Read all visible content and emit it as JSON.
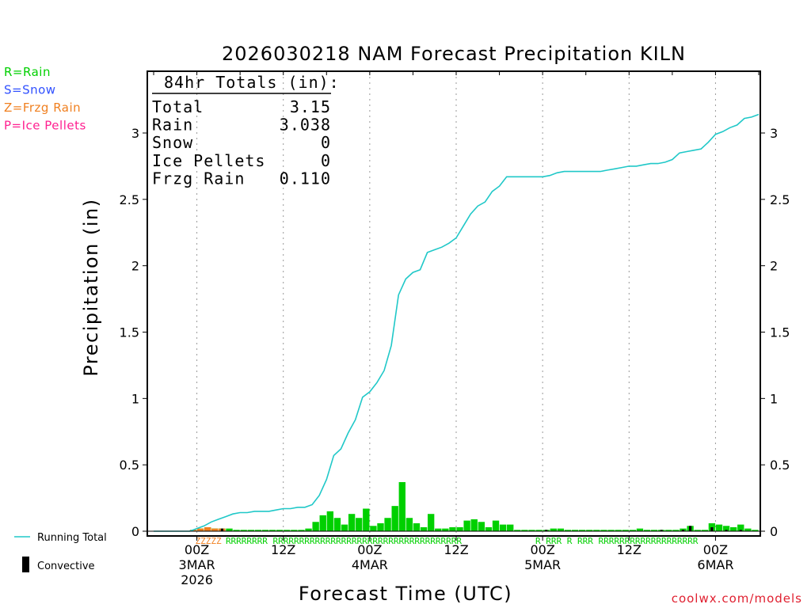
{
  "chart_data": {
    "type": "bar",
    "title": "2026030218 NAM Forecast Precipitation KILN",
    "xlabel": "Forecast Time (UTC)",
    "ylabel": "Precipitation (in)",
    "ylim": [
      0,
      3.45
    ],
    "xlim_hours": [
      0,
      84
    ],
    "y_ticks": [
      0,
      0.5,
      1,
      1.5,
      2,
      2.5,
      3
    ],
    "y_tick_labels": [
      "0",
      "0.5",
      "1",
      "1.5",
      "2",
      "2.5",
      "3"
    ],
    "x_ticks": [
      {
        "hour": 6,
        "lines": [
          "00Z",
          "3MAR",
          "2026"
        ]
      },
      {
        "hour": 18,
        "lines": [
          "12Z"
        ]
      },
      {
        "hour": 30,
        "lines": [
          "00Z",
          "4MAR"
        ]
      },
      {
        "hour": 42,
        "lines": [
          "12Z"
        ]
      },
      {
        "hour": 54,
        "lines": [
          "00Z",
          "5MAR"
        ]
      },
      {
        "hour": 66,
        "lines": [
          "12Z"
        ]
      },
      {
        "hour": 78,
        "lines": [
          "00Z",
          "6MAR"
        ]
      }
    ],
    "legend_types": [
      {
        "label": "R=Rain",
        "color": "#00d000"
      },
      {
        "label": "S=Snow",
        "color": "#3050ff"
      },
      {
        "label": "Z=Frzg Rain",
        "color": "#f08020"
      },
      {
        "label": "P=Ice Pellets",
        "color": "#ff2090"
      }
    ],
    "legend_series": [
      {
        "label": "Running Total",
        "color": "#20c8c8"
      },
      {
        "label": "Convective",
        "color": "#000000"
      }
    ],
    "totals_box": {
      "header": "84hr Totals (in):",
      "rows": [
        {
          "label": "Total",
          "value": "3.15"
        },
        {
          "label": "Rain",
          "value": "3.038"
        },
        {
          "label": "Snow",
          "value": "0"
        },
        {
          "label": "Ice Pellets",
          "value": "0"
        },
        {
          "label": "Frzg Rain",
          "value": "0.110"
        }
      ]
    },
    "series": [
      {
        "name": "Hourly Precipitation",
        "color": "#00d000",
        "hours": [
          1,
          2,
          3,
          4,
          5,
          6,
          7,
          8,
          9,
          10,
          11,
          12,
          13,
          14,
          15,
          16,
          17,
          18,
          19,
          20,
          21,
          22,
          23,
          24,
          25,
          26,
          27,
          28,
          29,
          30,
          31,
          32,
          33,
          34,
          35,
          36,
          37,
          38,
          39,
          40,
          41,
          42,
          43,
          44,
          45,
          46,
          47,
          48,
          49,
          50,
          51,
          52,
          53,
          54,
          55,
          56,
          57,
          58,
          59,
          60,
          61,
          62,
          63,
          64,
          65,
          66,
          67,
          68,
          69,
          70,
          71,
          72,
          73,
          74,
          75,
          76,
          77,
          78,
          79,
          80,
          81,
          82,
          83,
          84
        ],
        "values": [
          0,
          0,
          0,
          0,
          0,
          0.01,
          0.02,
          0.03,
          0.02,
          0.02,
          0.02,
          0.01,
          0.01,
          0.01,
          0.01,
          0.01,
          0.01,
          0.01,
          0.01,
          0.01,
          0.01,
          0.02,
          0.07,
          0.12,
          0.15,
          0.1,
          0.05,
          0.13,
          0.1,
          0.17,
          0.04,
          0.06,
          0.1,
          0.19,
          0.37,
          0.1,
          0.06,
          0.03,
          0.13,
          0.02,
          0.02,
          0.03,
          0.03,
          0.08,
          0.09,
          0.07,
          0.03,
          0.08,
          0.05,
          0.05,
          0.01,
          0.01,
          0.01,
          0.01,
          0.01,
          0.02,
          0.02,
          0.01,
          0.01,
          0.01,
          0.01,
          0.01,
          0.01,
          0.01,
          0.01,
          0.01,
          0.01,
          0.02,
          0.01,
          0.01,
          0.01,
          0.01,
          0.01,
          0.02,
          0.04,
          0.01,
          0.01,
          0.06,
          0.05,
          0.04,
          0.03,
          0.05,
          0.02,
          0.01
        ]
      },
      {
        "name": "Convective",
        "color": "#000000",
        "hours": [
          10,
          55,
          71,
          74,
          75,
          78,
          80,
          82
        ],
        "values": [
          0.02,
          0.01,
          0.01,
          0.01,
          0.04,
          0.03,
          0.01,
          0.01
        ]
      },
      {
        "name": "Freezing Rain",
        "color": "#f08020",
        "hours": [
          6,
          7,
          8,
          9,
          10
        ],
        "values": [
          0.01,
          0.02,
          0.03,
          0.02,
          0.02
        ]
      },
      {
        "name": "Running Total",
        "color": "#20c8c8",
        "hours": [
          0,
          3,
          5,
          6,
          7,
          8,
          9,
          10,
          11,
          12,
          13,
          14,
          15,
          16,
          17,
          18,
          19,
          20,
          21,
          22,
          23,
          24,
          25,
          26,
          27,
          28,
          29,
          30,
          31,
          32,
          33,
          34,
          35,
          36,
          37,
          38,
          39,
          40,
          41,
          42,
          43,
          44,
          45,
          46,
          47,
          48,
          49,
          50,
          51,
          52,
          53,
          54,
          55,
          56,
          57,
          58,
          59,
          60,
          61,
          62,
          63,
          64,
          65,
          66,
          67,
          68,
          69,
          70,
          71,
          72,
          73,
          74,
          75,
          76,
          77,
          78,
          79,
          80,
          81,
          82,
          83,
          84
        ],
        "values": [
          0,
          0,
          0,
          0.02,
          0.04,
          0.07,
          0.09,
          0.11,
          0.13,
          0.14,
          0.14,
          0.15,
          0.15,
          0.15,
          0.16,
          0.17,
          0.17,
          0.18,
          0.18,
          0.2,
          0.27,
          0.39,
          0.57,
          0.62,
          0.74,
          0.84,
          1.01,
          1.05,
          1.12,
          1.21,
          1.4,
          1.78,
          1.9,
          1.95,
          1.97,
          2.1,
          2.12,
          2.14,
          2.17,
          2.21,
          2.3,
          2.39,
          2.45,
          2.48,
          2.56,
          2.6,
          2.67,
          2.67,
          2.67,
          2.67,
          2.67,
          2.67,
          2.68,
          2.7,
          2.71,
          2.71,
          2.71,
          2.71,
          2.71,
          2.71,
          2.72,
          2.73,
          2.74,
          2.75,
          2.75,
          2.76,
          2.77,
          2.77,
          2.78,
          2.8,
          2.85,
          2.86,
          2.87,
          2.88,
          2.93,
          2.99,
          3.01,
          3.04,
          3.06,
          3.11,
          3.12,
          3.14
        ]
      }
    ],
    "type_code_strips": [
      {
        "type": "Z",
        "color": "#f08020",
        "text": "ZZZZZ"
      },
      {
        "type": "R",
        "color": "#00d000",
        "text": "RRRRRRRR   RRRRRRRRRRRRRRRRRRRRRRRRRRRRRRRRRRRR"
      },
      {
        "type": "R",
        "color": "#00d000",
        "text": "R RRR    R     RRR   RRRRRRRRRRRRRRRRRRR"
      }
    ],
    "credit": "coolwx.com/models"
  }
}
